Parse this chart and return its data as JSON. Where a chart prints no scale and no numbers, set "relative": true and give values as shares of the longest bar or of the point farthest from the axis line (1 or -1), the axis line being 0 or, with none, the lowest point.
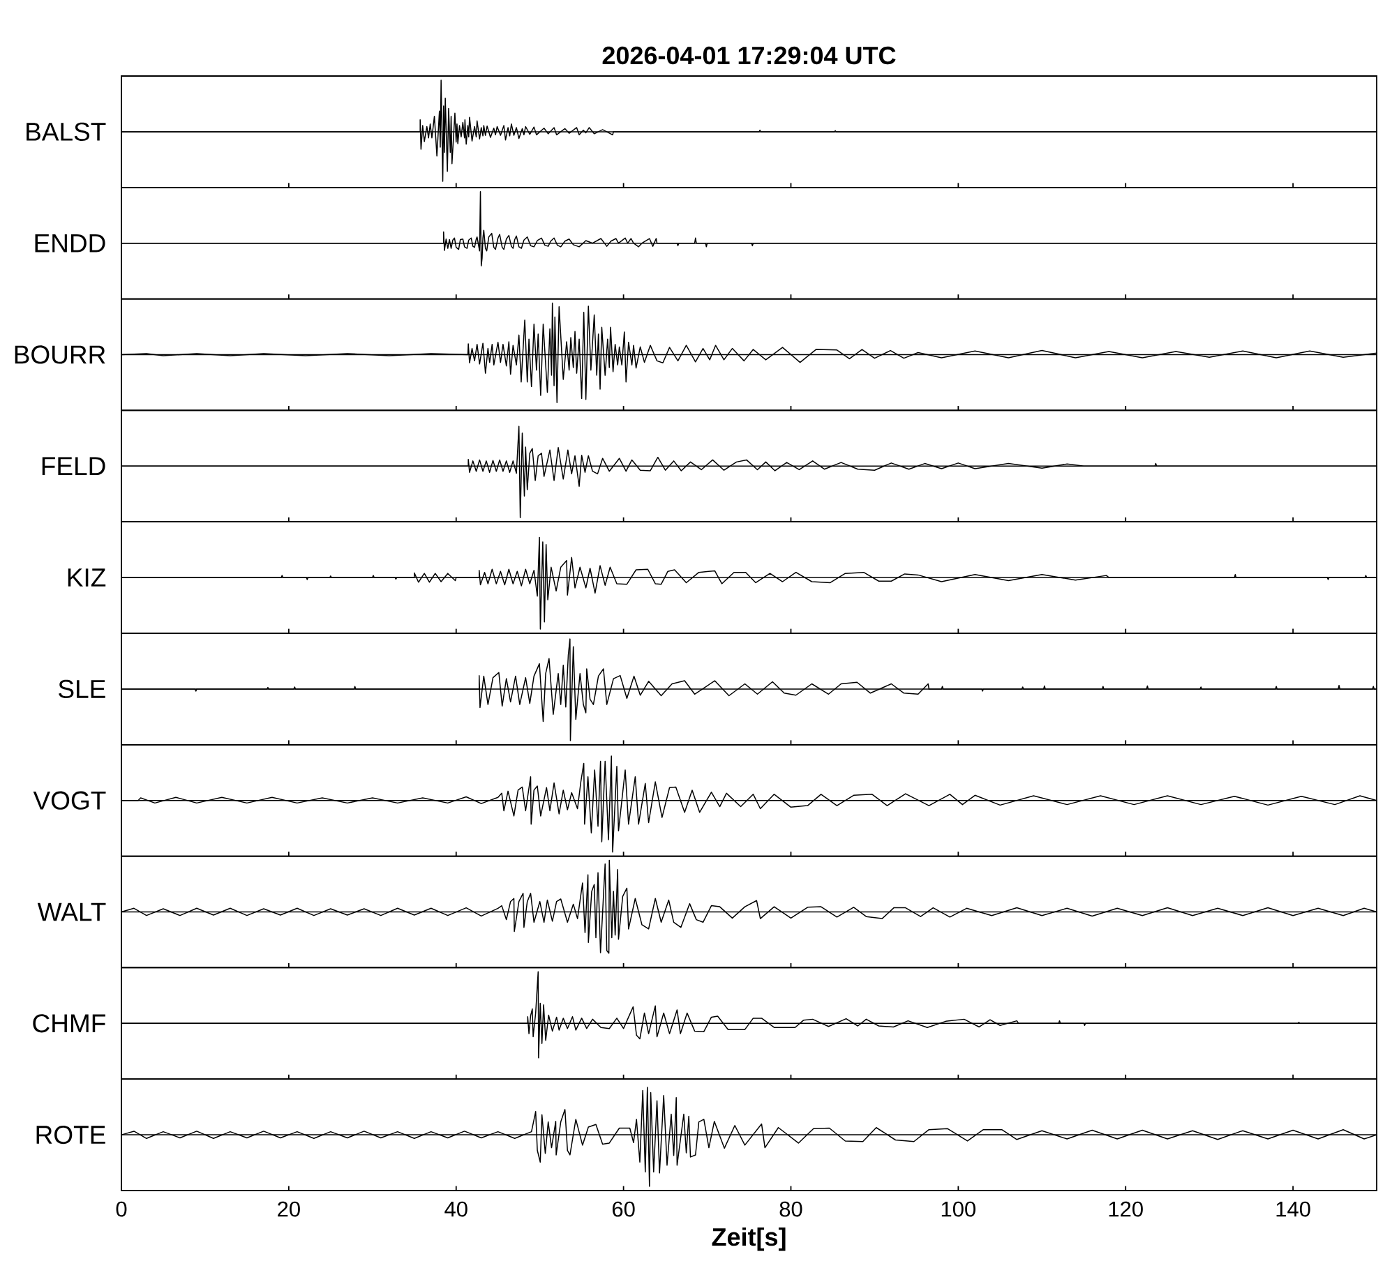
{
  "chart_data": [
    {
      "type": "line",
      "title": "2026-04-01 17:29:04 UTC",
      "ylabel": "BALST",
      "relative": true,
      "color": "#000000",
      "xlim": [
        0,
        150
      ],
      "xticks": [
        0,
        20,
        40,
        60,
        80,
        100,
        120,
        140
      ],
      "tick_labels": false,
      "x": [
        0,
        35.7,
        35.7,
        35.8,
        36.0,
        36.2,
        36.5,
        36.7,
        36.9,
        37.1,
        37.4,
        37.7,
        38.0,
        38.1,
        38.2,
        38.4,
        38.5,
        38.6,
        38.7,
        38.95,
        39.1,
        39.3,
        39.4,
        39.5,
        39.85,
        40.0,
        40.1,
        40.2,
        40.4,
        40.6,
        40.8,
        41.0,
        41.05,
        41.2,
        41.4,
        41.5,
        41.6,
        41.9,
        42.2,
        42.4,
        42.5,
        42.8,
        43.0,
        43.2,
        43.3,
        43.5,
        43.7,
        44.1,
        44.5,
        44.7,
        44.9,
        45.3,
        45.7,
        45.9,
        46.2,
        46.4,
        46.6,
        46.9,
        47.2,
        47.5,
        47.9,
        48.1,
        48.3,
        48.8,
        49.3,
        49.6,
        50.5,
        51.0,
        51.7,
        52.0,
        53.0,
        53.5,
        54.4,
        54.7,
        55.2,
        55.5,
        55.9,
        56.5,
        57.5,
        58.7,
        58.8,
        76.2,
        76.3,
        76.4,
        85.2,
        85.3,
        85.4,
        150
      ],
      "values": [
        0,
        0,
        0.23,
        -0.34,
        0.12,
        -0.19,
        0.1,
        -0.12,
        0.15,
        -0.12,
        0.3,
        -0.47,
        0.4,
        -0.3,
        1,
        -0.96,
        0.5,
        -0.4,
        0.65,
        -0.77,
        0.45,
        -0.4,
        0.3,
        -0.62,
        0.36,
        -0.2,
        0.15,
        -0.23,
        0.12,
        -0.1,
        0.18,
        -0.12,
        0.23,
        -0.24,
        0.12,
        -0.1,
        0.28,
        -0.18,
        0.1,
        -0.1,
        0.21,
        -0.14,
        0.08,
        -0.08,
        0.12,
        -0.07,
        0.11,
        -0.11,
        0.07,
        -0.06,
        0.1,
        -0.07,
        0.12,
        -0.16,
        0.08,
        -0.08,
        0.15,
        -0.07,
        0.08,
        -0.13,
        0.06,
        -0.06,
        0.1,
        -0.05,
        0.09,
        -0.06,
        0.07,
        -0.04,
        0.08,
        -0.06,
        0.06,
        -0.03,
        0.08,
        -0.06,
        0.03,
        -0.02,
        0.08,
        -0.04,
        0.04,
        -0.06,
        0,
        0,
        0.03,
        0,
        0,
        0.02,
        0,
        0
      ]
    },
    {
      "type": "line",
      "ylabel": "ENDD",
      "relative": true,
      "color": "#000000",
      "xlim": [
        0,
        150
      ],
      "xticks": [
        0,
        20,
        40,
        60,
        80,
        100,
        120,
        140
      ],
      "tick_labels": false,
      "x": [
        0,
        38.5,
        38.5,
        38.6,
        38.8,
        39.0,
        39.2,
        39.4,
        39.6,
        39.8,
        40.0,
        40.3,
        40.5,
        40.8,
        41.0,
        41.3,
        41.5,
        41.8,
        42.0,
        42.2,
        42.4,
        42.5,
        42.8,
        42.9,
        43.0,
        43.1,
        43.2,
        43.3,
        43.5,
        43.65,
        43.9,
        44.25,
        44.5,
        44.7,
        45.0,
        45.2,
        45.5,
        45.7,
        46.0,
        46.3,
        46.6,
        46.8,
        47.0,
        47.2,
        47.5,
        47.8,
        48.1,
        48.5,
        48.9,
        49.3,
        49.7,
        50.2,
        50.6,
        51.0,
        51.3,
        51.7,
        52.1,
        52.5,
        53.0,
        53.5,
        54.0,
        54.7,
        55.5,
        56.3,
        57.3,
        58.0,
        58.5,
        59.1,
        59.4,
        60.2,
        60.5,
        60.9,
        61.2,
        61.8,
        62.2,
        63.1,
        63.5,
        63.9,
        64.0,
        66.4,
        66.5,
        66.6,
        68.5,
        68.6,
        68.7,
        69.8,
        69.9,
        70.0,
        75.3,
        75.4,
        75.5,
        150
      ],
      "values": [
        0,
        0,
        0.22,
        -0.14,
        0.08,
        -0.1,
        0.07,
        -0.1,
        0.06,
        0.1,
        -0.08,
        -0.12,
        0.07,
        0.08,
        -0.07,
        -0.1,
        0.06,
        0.1,
        -0.06,
        -0.08,
        0.08,
        0.12,
        -0.15,
        1,
        -0.44,
        -0.29,
        0.1,
        0.25,
        -0.1,
        -0.15,
        0.12,
        0.19,
        -0.08,
        -0.12,
        0.1,
        0.17,
        -0.08,
        -0.12,
        0.08,
        0.15,
        -0.06,
        -0.1,
        0.07,
        0.14,
        -0.07,
        -0.1,
        0.06,
        0.12,
        -0.05,
        -0.07,
        0.05,
        0.1,
        -0.04,
        -0.06,
        0.04,
        0.1,
        -0.04,
        -0.07,
        0.04,
        0.08,
        -0.03,
        -0.07,
        0.05,
        0,
        0.09,
        -0.06,
        0.04,
        0.09,
        0,
        0.1,
        0,
        0.09,
        0,
        -0.07,
        0,
        0.09,
        -0.06,
        0.09,
        0,
        0,
        -0.05,
        0,
        0,
        0.1,
        0,
        0,
        -0.07,
        0,
        0,
        -0.05,
        0,
        0
      ]
    },
    {
      "type": "line",
      "ylabel": "BOURR",
      "relative": true,
      "color": "#000000",
      "xlim": [
        0,
        150
      ],
      "xticks": [
        0,
        20,
        40,
        60,
        80,
        100,
        120,
        140
      ],
      "tick_labels": false,
      "x": [
        0,
        3,
        5,
        9,
        13,
        17,
        22,
        27,
        32,
        37,
        41.4,
        41.45,
        41.6,
        41.9,
        42.2,
        42.5,
        42.8,
        43.2,
        43.5,
        43.8,
        44.0,
        44.3,
        44.5,
        45.0,
        45.3,
        45.6,
        46.0,
        46.3,
        46.5,
        46.8,
        47.2,
        47.5,
        47.77,
        48.2,
        48.5,
        48.7,
        49.0,
        49.3,
        49.6,
        49.8,
        50.1,
        50.4,
        50.9,
        51.2,
        51.4,
        51.5,
        51.7,
        51.8,
        52.05,
        52.3,
        52.8,
        53.2,
        53.5,
        53.7,
        54.0,
        54.2,
        54.4,
        54.7,
        55.0,
        55.25,
        55.5,
        55.8,
        56.1,
        56.5,
        56.8,
        57.0,
        57.2,
        57.4,
        57.8,
        58.1,
        58.3,
        58.45,
        58.75,
        59.0,
        59.3,
        59.5,
        59.8,
        60.1,
        60.3,
        60.6,
        61.0,
        61.2,
        61.5,
        62.0,
        62.5,
        63.2,
        64.0,
        64.7,
        65.5,
        66.5,
        67.5,
        68.6,
        69.5,
        70.3,
        71.0,
        72.0,
        73.0,
        74.4,
        75.5,
        77.0,
        79.0,
        81.1,
        83,
        85.5,
        87,
        88.5,
        90,
        91.9,
        93.5,
        95.2,
        98,
        102,
        106,
        110,
        114,
        118,
        122,
        126,
        130,
        134,
        138,
        142,
        146,
        150
      ],
      "values": [
        0,
        0.02,
        -0.02,
        0.02,
        -0.02,
        0.02,
        -0.02,
        0.02,
        -0.02,
        0.02,
        0,
        0.21,
        -0.16,
        0.12,
        -0.12,
        0.2,
        -0.18,
        0.22,
        -0.36,
        0.12,
        -0.15,
        0.2,
        -0.2,
        0.24,
        -0.15,
        0.2,
        -0.22,
        0.25,
        -0.38,
        0.18,
        -0.2,
        0.38,
        -0.53,
        0.67,
        -0.53,
        0.3,
        -0.62,
        0.59,
        -0.3,
        0.4,
        -0.79,
        0.59,
        -0.73,
        0.5,
        -0.4,
        1,
        -0.6,
        0.73,
        -0.93,
        0.93,
        -0.48,
        0.25,
        -0.3,
        0.33,
        -0.25,
        0.45,
        -0.36,
        0.3,
        -0.85,
        0.82,
        -0.87,
        0.94,
        -0.3,
        0.77,
        -0.4,
        0.4,
        -0.67,
        0.53,
        -0.4,
        0.3,
        -0.25,
        0.53,
        -0.33,
        0.2,
        -0.2,
        0.15,
        -0.2,
        0.44,
        -0.53,
        0.24,
        -0.2,
        0.18,
        -0.26,
        0.15,
        -0.15,
        0.18,
        -0.12,
        -0.16,
        0.14,
        -0.12,
        0.18,
        -0.14,
        0.12,
        -0.1,
        0.18,
        -0.1,
        0.12,
        -0.12,
        0.1,
        -0.1,
        0.14,
        -0.15,
        0.1,
        0.09,
        -0.08,
        0.1,
        -0.07,
        0.08,
        -0.07,
        0.04,
        -0.06,
        0.07,
        -0.06,
        0.08,
        -0.06,
        0.06,
        -0.06,
        0.06,
        -0.05,
        0.07,
        -0.06,
        0.07,
        -0.05,
        0.03
      ]
    },
    {
      "type": "line",
      "ylabel": "FELD",
      "relative": true,
      "color": "#000000",
      "xlim": [
        0,
        150
      ],
      "xticks": [
        0,
        20,
        40,
        60,
        80,
        100,
        120,
        140
      ],
      "tick_labels": false,
      "x": [
        0,
        41.45,
        41.45,
        41.6,
        42.0,
        42.4,
        42.8,
        43.2,
        43.6,
        44.0,
        44.4,
        44.8,
        45.2,
        45.6,
        46.0,
        46.4,
        46.8,
        47.2,
        47.5,
        47.66,
        47.9,
        48.15,
        48.3,
        48.5,
        48.8,
        49.1,
        49.45,
        49.8,
        50.2,
        50.5,
        51.2,
        51.7,
        52.2,
        52.8,
        53.35,
        53.8,
        54.2,
        54.7,
        55.0,
        55.4,
        55.8,
        56.3,
        56.9,
        57.5,
        58.3,
        59.5,
        60.3,
        61.0,
        62.0,
        63.2,
        64.1,
        65.0,
        66.0,
        66.9,
        68.0,
        69.3,
        70.65,
        72.0,
        73.5,
        74.7,
        76.0,
        77.0,
        78.1,
        79.5,
        81.0,
        82.6,
        84,
        86,
        88,
        90.0,
        92,
        94.1,
        96,
        98,
        100,
        102,
        106,
        110,
        113,
        115,
        123.5,
        123.6,
        123.7,
        150
      ],
      "values": [
        0,
        0,
        0.13,
        -0.12,
        0.1,
        -0.1,
        0.12,
        -0.1,
        0.1,
        -0.12,
        0.11,
        -0.1,
        0.12,
        -0.1,
        0.1,
        -0.12,
        0.1,
        -0.14,
        0.77,
        -1,
        0.64,
        -0.58,
        0.37,
        -0.46,
        0.25,
        0.34,
        -0.28,
        0.2,
        0.25,
        -0.2,
        0.31,
        -0.28,
        0.36,
        -0.25,
        0.31,
        -0.15,
        0.2,
        -0.39,
        0.21,
        -0.12,
        0.2,
        -0.1,
        -0.15,
        0.15,
        -0.1,
        0.15,
        -0.1,
        0.12,
        -0.08,
        -0.09,
        0.17,
        -0.08,
        0.1,
        -0.09,
        0.08,
        -0.07,
        0.12,
        -0.08,
        0.08,
        0.12,
        -0.07,
        0.08,
        -0.09,
        0.07,
        -0.07,
        0.1,
        -0.06,
        0.07,
        -0.06,
        -0.08,
        0.06,
        -0.06,
        0.05,
        -0.05,
        0.06,
        -0.05,
        0.05,
        -0.04,
        0.04,
        0,
        0,
        0.05,
        0,
        0
      ]
    },
    {
      "type": "line",
      "ylabel": "KIZ",
      "relative": true,
      "color": "#000000",
      "xlim": [
        0,
        150
      ],
      "xticks": [
        0,
        20,
        40,
        60,
        80,
        100,
        120,
        140
      ],
      "tick_labels": false,
      "x": [
        0,
        19.1,
        19.2,
        19.3,
        22.1,
        22.2,
        22.3,
        24.9,
        25,
        25.1,
        30,
        30.1,
        30.2,
        32.7,
        32.8,
        32.9,
        35,
        35,
        35.5,
        36.2,
        36.8,
        37.5,
        38.2,
        39,
        39.9,
        40,
        42.75,
        42.75,
        42.9,
        43.4,
        43.8,
        44.3,
        44.8,
        45.3,
        45.8,
        46.3,
        46.8,
        47.3,
        47.8,
        48.3,
        48.8,
        49.3,
        49.7,
        49.95,
        50.06,
        50.35,
        50.55,
        50.75,
        50.95,
        51.35,
        51.95,
        52.5,
        53.2,
        53.3,
        53.8,
        54.2,
        54.8,
        55.5,
        56.0,
        56.6,
        57.2,
        57.8,
        58.4,
        59.2,
        60.4,
        61.5,
        62.9,
        63.8,
        64.5,
        65.3,
        66.1,
        67.5,
        69,
        70.9,
        71.75,
        73.2,
        74.6,
        75.8,
        77.5,
        79,
        80.6,
        82.5,
        84.7,
        86.5,
        88.7,
        90.5,
        92.0,
        93.6,
        95.2,
        98,
        102,
        106,
        110,
        114,
        117.7,
        118,
        133,
        133.1,
        133.2,
        144.1,
        144.2,
        144.3,
        148.6,
        148.7,
        148.8,
        150
      ],
      "values": [
        0,
        0,
        0.04,
        0,
        0,
        -0.04,
        0,
        0,
        0.03,
        0,
        0,
        0.04,
        0,
        0,
        -0.03,
        0,
        0,
        0.09,
        -0.09,
        0.08,
        -0.09,
        0.08,
        -0.08,
        0.08,
        -0.06,
        0,
        0,
        0.14,
        -0.14,
        0.1,
        -0.12,
        0.16,
        -0.12,
        0.12,
        -0.14,
        0.16,
        -0.12,
        0.12,
        -0.16,
        0.16,
        -0.12,
        0.14,
        -0.36,
        0.78,
        -1,
        0.69,
        -0.86,
        0.64,
        -0.43,
        0.2,
        -0.26,
        0.2,
        0.33,
        -0.34,
        0.39,
        -0.2,
        0.2,
        -0.2,
        0.18,
        -0.3,
        0.23,
        -0.15,
        0.2,
        -0.12,
        -0.13,
        0.15,
        0.16,
        -0.12,
        -0.13,
        0.12,
        0.15,
        -0.1,
        0.1,
        0.13,
        -0.12,
        0.1,
        0.1,
        -0.1,
        0.08,
        -0.08,
        0.1,
        -0.08,
        -0.1,
        0.08,
        0.1,
        -0.07,
        -0.07,
        0.07,
        0.05,
        -0.08,
        0.06,
        -0.06,
        0.06,
        -0.05,
        0.04,
        0,
        0,
        0.06,
        0,
        0,
        -0.04,
        0,
        0,
        0.04,
        0,
        0
      ]
    },
    {
      "type": "line",
      "ylabel": "SLE",
      "relative": true,
      "color": "#000000",
      "xlim": [
        0,
        150
      ],
      "xticks": [
        0,
        20,
        40,
        60,
        80,
        100,
        120,
        140
      ],
      "tick_labels": false,
      "x": [
        0,
        8.8,
        8.9,
        9.0,
        17.4,
        17.5,
        17.6,
        20.6,
        20.7,
        20.8,
        27.8,
        27.9,
        28,
        42.75,
        42.75,
        42.85,
        43.3,
        43.8,
        44.4,
        45.1,
        45.5,
        46.0,
        46.5,
        47.1,
        47.6,
        48.3,
        48.8,
        49.3,
        49.95,
        50.4,
        50.7,
        51.1,
        51.6,
        52.2,
        52.5,
        52.8,
        53.1,
        53.4,
        53.6,
        53.65,
        54.0,
        54.3,
        54.8,
        55.2,
        55.5,
        55.6,
        56.0,
        56.4,
        57.0,
        57.6,
        58.0,
        58.8,
        59.6,
        60.4,
        61.25,
        62.0,
        63.0,
        64.5,
        65.8,
        67.3,
        68.5,
        70.9,
        72.6,
        74.5,
        76,
        77.8,
        79.2,
        80.6,
        82.5,
        84.5,
        86,
        87.9,
        89.5,
        92.0,
        93.5,
        95.2,
        96.4,
        96.5,
        98,
        98.1,
        98.2,
        102.8,
        102.9,
        103,
        107.6,
        107.7,
        107.8,
        110.2,
        110.3,
        110.4,
        117.2,
        117.3,
        117.4,
        122.5,
        122.6,
        122.7,
        128.9,
        129,
        129.1,
        137.9,
        138,
        138.1,
        145.4,
        145.5,
        145.6,
        149.5,
        149.6,
        149.7,
        150
      ],
      "values": [
        0,
        0,
        -0.04,
        0,
        0,
        0.03,
        0,
        0,
        0.04,
        0,
        0,
        0.05,
        0,
        0,
        0.26,
        -0.36,
        0.25,
        -0.3,
        0.22,
        0.32,
        -0.33,
        0.2,
        -0.25,
        0.25,
        -0.3,
        0.22,
        -0.28,
        0.25,
        0.49,
        -0.63,
        0.3,
        0.59,
        -0.49,
        0.3,
        -0.3,
        0.46,
        -0.35,
        0.66,
        0.97,
        -1,
        0.82,
        -0.59,
        0.3,
        -0.3,
        -0.46,
        0.39,
        -0.2,
        -0.3,
        0.25,
        0.39,
        -0.3,
        0.2,
        0.26,
        -0.18,
        0.25,
        -0.12,
        0.15,
        -0.13,
        0.1,
        0.16,
        -0.1,
        0.16,
        -0.13,
        0.1,
        -0.1,
        0.14,
        -0.08,
        -0.12,
        0.1,
        -0.1,
        0.1,
        0.13,
        -0.08,
        0.1,
        -0.08,
        -0.1,
        0.1,
        0,
        0,
        0.05,
        0,
        0,
        -0.04,
        0,
        0,
        0.04,
        0,
        0,
        0.06,
        0,
        0,
        0.05,
        0,
        0,
        0.06,
        0,
        0,
        0.04,
        0,
        0,
        0.05,
        0,
        0,
        0.07,
        0,
        0,
        0.05,
        0,
        0
      ]
    },
    {
      "type": "line",
      "ylabel": "VOGT",
      "relative": true,
      "color": "#000000",
      "xlim": [
        0,
        150
      ],
      "xticks": [
        0,
        20,
        40,
        60,
        80,
        100,
        120,
        140
      ],
      "tick_labels": false,
      "x": [
        0,
        2.0,
        2.3,
        4,
        6.5,
        9,
        12,
        15,
        18,
        21,
        24,
        27,
        30,
        33,
        36,
        39,
        41.2,
        43,
        45,
        45.45,
        45.7,
        46.2,
        46.9,
        47.4,
        47.9,
        48.3,
        48.9,
        48.96,
        49.3,
        49.7,
        50.1,
        50.8,
        51.2,
        51.7,
        52.3,
        52.8,
        53.3,
        53.8,
        54.5,
        54.9,
        55.25,
        55.35,
        55.75,
        56.15,
        56.55,
        56.95,
        57.25,
        57.4,
        57.8,
        58.2,
        58.55,
        58.7,
        59.2,
        59.4,
        60.2,
        60.6,
        61.4,
        61.8,
        62.6,
        63.0,
        63.8,
        64.6,
        65.5,
        66.25,
        67.3,
        68.2,
        69.1,
        70.5,
        71.5,
        72.3,
        74,
        75.5,
        76.35,
        78,
        80.0,
        82,
        83.6,
        85.5,
        87.5,
        89.7,
        91.5,
        93.7,
        96.5,
        99.0,
        100.5,
        102,
        105,
        109,
        113,
        117,
        121,
        125,
        129,
        133,
        137,
        141,
        145,
        148,
        150
      ],
      "values": [
        0,
        0,
        0.05,
        -0.05,
        0.06,
        -0.05,
        0.06,
        -0.05,
        0.06,
        -0.05,
        0.05,
        -0.05,
        0.05,
        -0.05,
        0.05,
        -0.05,
        0.07,
        -0.06,
        0.06,
        0.14,
        -0.2,
        0.18,
        -0.3,
        0.2,
        0.26,
        -0.2,
        0.46,
        -0.46,
        0.2,
        0.28,
        -0.3,
        0.25,
        -0.2,
        0.34,
        -0.26,
        0.2,
        -0.18,
        0.15,
        -0.16,
        0.36,
        0.72,
        -0.46,
        0.46,
        -0.63,
        0.59,
        -0.5,
        0.76,
        -0.8,
        0.76,
        -0.76,
        0.86,
        -1,
        0.66,
        -0.59,
        0.59,
        -0.46,
        0.46,
        -0.46,
        0.33,
        -0.43,
        0.36,
        -0.33,
        0.25,
        0.26,
        -0.23,
        0.2,
        -0.23,
        0.16,
        -0.12,
        0.14,
        -0.12,
        0.12,
        -0.16,
        0.12,
        -0.13,
        -0.1,
        0.12,
        -0.1,
        0.1,
        0.12,
        -0.1,
        0.13,
        -0.1,
        0.12,
        -0.08,
        0.1,
        -0.09,
        0.09,
        -0.08,
        0.09,
        -0.08,
        0.09,
        -0.08,
        0.08,
        -0.09,
        0.08,
        -0.08,
        0.09,
        0
      ]
    },
    {
      "type": "line",
      "ylabel": "WALT",
      "relative": true,
      "color": "#000000",
      "xlim": [
        0,
        150
      ],
      "xticks": [
        0,
        20,
        40,
        60,
        80,
        100,
        120,
        140
      ],
      "tick_labels": false,
      "x": [
        0,
        1.5,
        3,
        5,
        7,
        9,
        11,
        13,
        15,
        17,
        19,
        21,
        23,
        25,
        27,
        29,
        31,
        33,
        35,
        37,
        39,
        41.2,
        43,
        45,
        45.45,
        46.0,
        46.5,
        46.9,
        46.95,
        47.5,
        48.0,
        48.1,
        48.5,
        48.9,
        49.3,
        50.0,
        50.5,
        50.9,
        51.5,
        52.0,
        52.5,
        53.3,
        54.0,
        54.5,
        55.1,
        55.4,
        55.75,
        55.8,
        56.2,
        56.5,
        56.7,
        56.95,
        57.25,
        57.8,
        58.0,
        58.25,
        58.3,
        58.6,
        58.8,
        59.0,
        59.3,
        59.4,
        59.9,
        60.4,
        60.6,
        61.4,
        62.2,
        63.0,
        63.8,
        64.5,
        65.4,
        66.0,
        66.85,
        67.9,
        68.7,
        69.5,
        70.5,
        71.5,
        73,
        74.5,
        75.9,
        76.35,
        78,
        80.0,
        82,
        83.6,
        85.5,
        87.5,
        89,
        90.9,
        92.3,
        93.7,
        95.5,
        97,
        99.0,
        101,
        104,
        107,
        110,
        113,
        116,
        119,
        122,
        125,
        128,
        131,
        134,
        137,
        140,
        143,
        146,
        148.5,
        150
      ],
      "values": [
        0,
        0.07,
        -0.07,
        0.06,
        -0.07,
        0.07,
        -0.06,
        0.07,
        -0.07,
        0.06,
        -0.06,
        0.07,
        -0.07,
        0.06,
        -0.06,
        0.06,
        -0.07,
        0.07,
        -0.06,
        0.07,
        -0.07,
        0.08,
        -0.08,
        0.07,
        0.12,
        -0.15,
        0.2,
        0.26,
        -0.38,
        0.2,
        0.36,
        -0.3,
        0.2,
        0.36,
        -0.2,
        0.2,
        -0.2,
        0.23,
        -0.18,
        0.2,
        0.25,
        -0.2,
        0.15,
        -0.13,
        0.56,
        -0.4,
        0.72,
        -0.59,
        0.4,
        0.53,
        -0.5,
        0.76,
        -0.79,
        0.93,
        -0.75,
        -0.8,
        1,
        -0.5,
        0.4,
        -0.45,
        0.82,
        -0.53,
        0.3,
        0.46,
        -0.33,
        0.26,
        -0.25,
        -0.33,
        0.26,
        -0.2,
        0.23,
        -0.2,
        -0.3,
        0.16,
        -0.15,
        -0.2,
        0.12,
        0.1,
        -0.12,
        0.1,
        0.22,
        -0.13,
        0.1,
        -0.12,
        0.09,
        0.1,
        -0.1,
        0.09,
        -0.09,
        -0.13,
        0.08,
        0.08,
        -0.09,
        0.08,
        -0.1,
        0.07,
        -0.07,
        0.08,
        -0.07,
        0.07,
        -0.08,
        0.07,
        -0.07,
        0.08,
        -0.07,
        0.07,
        -0.07,
        0.08,
        -0.07,
        0.07,
        -0.07,
        0.07,
        0
      ]
    },
    {
      "type": "line",
      "ylabel": "CHMF",
      "relative": true,
      "color": "#000000",
      "xlim": [
        0,
        150
      ],
      "xticks": [
        0,
        20,
        40,
        60,
        80,
        100,
        120,
        140
      ],
      "tick_labels": false,
      "x": [
        0,
        48.55,
        48.55,
        48.7,
        48.9,
        49.1,
        49.2,
        49.5,
        49.8,
        49.85,
        50.05,
        50.25,
        50.45,
        50.7,
        51.05,
        51.5,
        52.0,
        52.3,
        52.8,
        53.3,
        53.9,
        54.3,
        55.0,
        55.6,
        56.3,
        57.3,
        58.3,
        59.2,
        60.0,
        60.6,
        61.15,
        61.55,
        61.95,
        62.5,
        63.0,
        63.8,
        64.0,
        64.8,
        65.5,
        66.4,
        66.8,
        67.6,
        68.5,
        69.6,
        70.5,
        71.25,
        72.5,
        74.5,
        75.5,
        76.5,
        78,
        80.5,
        81.5,
        82.6,
        84.5,
        86.6,
        88,
        89.0,
        90.5,
        92.25,
        94,
        96.3,
        98.5,
        100.7,
        102.5,
        103.8,
        105,
        107,
        107.2,
        112,
        112.1,
        112.2,
        115,
        115.1,
        115.2,
        140.6,
        140.7,
        140.8,
        150
      ],
      "values": [
        0,
        0,
        0.13,
        -0.2,
        0.15,
        0.28,
        -0.26,
        0.2,
        1,
        -0.67,
        0.39,
        -0.39,
        0.36,
        -0.33,
        0.16,
        -0.15,
        0.12,
        -0.13,
        0.1,
        -0.1,
        0.13,
        -0.13,
        0.1,
        -0.1,
        0.08,
        -0.08,
        -0.1,
        0.1,
        -0.1,
        0.12,
        0.32,
        -0.23,
        -0.3,
        0.2,
        -0.2,
        0.34,
        -0.26,
        0.2,
        -0.2,
        0.26,
        -0.2,
        0.2,
        -0.15,
        -0.16,
        0.12,
        0.14,
        -0.12,
        -0.12,
        0.1,
        0.1,
        -0.08,
        -0.08,
        0.06,
        0.08,
        -0.06,
        0.09,
        -0.05,
        0.08,
        -0.05,
        -0.07,
        0.05,
        -0.08,
        0.04,
        0.08,
        -0.07,
        0.07,
        -0.04,
        0.05,
        0,
        0,
        0.05,
        0,
        0,
        -0.04,
        0,
        0,
        0.02,
        0,
        0
      ]
    },
    {
      "type": "line",
      "ylabel": "ROTE",
      "xlabel": "Zeit[s]",
      "relative": true,
      "color": "#000000",
      "xlim": [
        0,
        150
      ],
      "xticks": [
        0,
        20,
        40,
        60,
        80,
        100,
        120,
        140
      ],
      "tick_labels": "x",
      "x": [
        0,
        1.5,
        3,
        5,
        7,
        9,
        11,
        13,
        15,
        17,
        19,
        21,
        23,
        25,
        27,
        29,
        31,
        33,
        35,
        37,
        39,
        41,
        43,
        45,
        47,
        49.0,
        49.5,
        49.7,
        50.05,
        50.25,
        50.65,
        51.0,
        51.4,
        51.9,
        51.95,
        52.5,
        53.0,
        53.3,
        53.6,
        54.3,
        55.1,
        55.8,
        56.7,
        57.5,
        58.3,
        59.5,
        60.75,
        61.2,
        61.55,
        61.95,
        62.3,
        62.6,
        62.85,
        63.1,
        63.25,
        63.6,
        64.0,
        64.3,
        64.8,
        65.2,
        65.7,
        66.0,
        66.3,
        66.4,
        67.2,
        67.5,
        67.8,
        68.0,
        68.6,
        69.0,
        69.6,
        70.2,
        70.85,
        72.05,
        73.3,
        74.5,
        76.5,
        76.9,
        78.5,
        80.9,
        82.7,
        84.6,
        86.5,
        88.6,
        90.2,
        92.5,
        94.7,
        96.5,
        98.7,
        101.1,
        103,
        105.2,
        107,
        110,
        113,
        116,
        119,
        122,
        125,
        128,
        131,
        134,
        137,
        140,
        143,
        146,
        148.5,
        150
      ],
      "values": [
        0,
        0.07,
        -0.07,
        0.06,
        -0.06,
        0.07,
        -0.07,
        0.06,
        -0.06,
        0.07,
        -0.06,
        0.06,
        -0.07,
        0.06,
        -0.06,
        0.07,
        -0.06,
        0.06,
        -0.07,
        0.06,
        -0.06,
        0.07,
        -0.06,
        0.06,
        -0.07,
        0.06,
        0.45,
        -0.3,
        -0.53,
        0.39,
        -0.36,
        0.25,
        -0.25,
        0.26,
        -0.39,
        0.25,
        0.49,
        -0.3,
        -0.39,
        0.3,
        -0.2,
        0.15,
        0.2,
        -0.18,
        -0.16,
        0.13,
        0.13,
        -0.15,
        0.3,
        -0.53,
        0.86,
        -0.72,
        0.92,
        -1,
        0.82,
        -0.72,
        0.66,
        -0.74,
        0.76,
        -0.59,
        0.4,
        -0.4,
        0.72,
        -0.59,
        0.4,
        -0.35,
        0.36,
        -0.43,
        -0.39,
        0.25,
        0.3,
        -0.25,
        0.26,
        -0.26,
        0.18,
        -0.2,
        0.21,
        -0.25,
        0.14,
        -0.16,
        0.12,
        0.13,
        -0.12,
        -0.13,
        0.14,
        -0.1,
        -0.13,
        0.1,
        0.12,
        -0.12,
        0.1,
        0.1,
        -0.09,
        0.08,
        -0.08,
        0.09,
        -0.08,
        0.09,
        -0.08,
        0.08,
        -0.09,
        0.08,
        -0.08,
        0.09,
        -0.08,
        0.1,
        -0.08,
        0
      ]
    }
  ]
}
